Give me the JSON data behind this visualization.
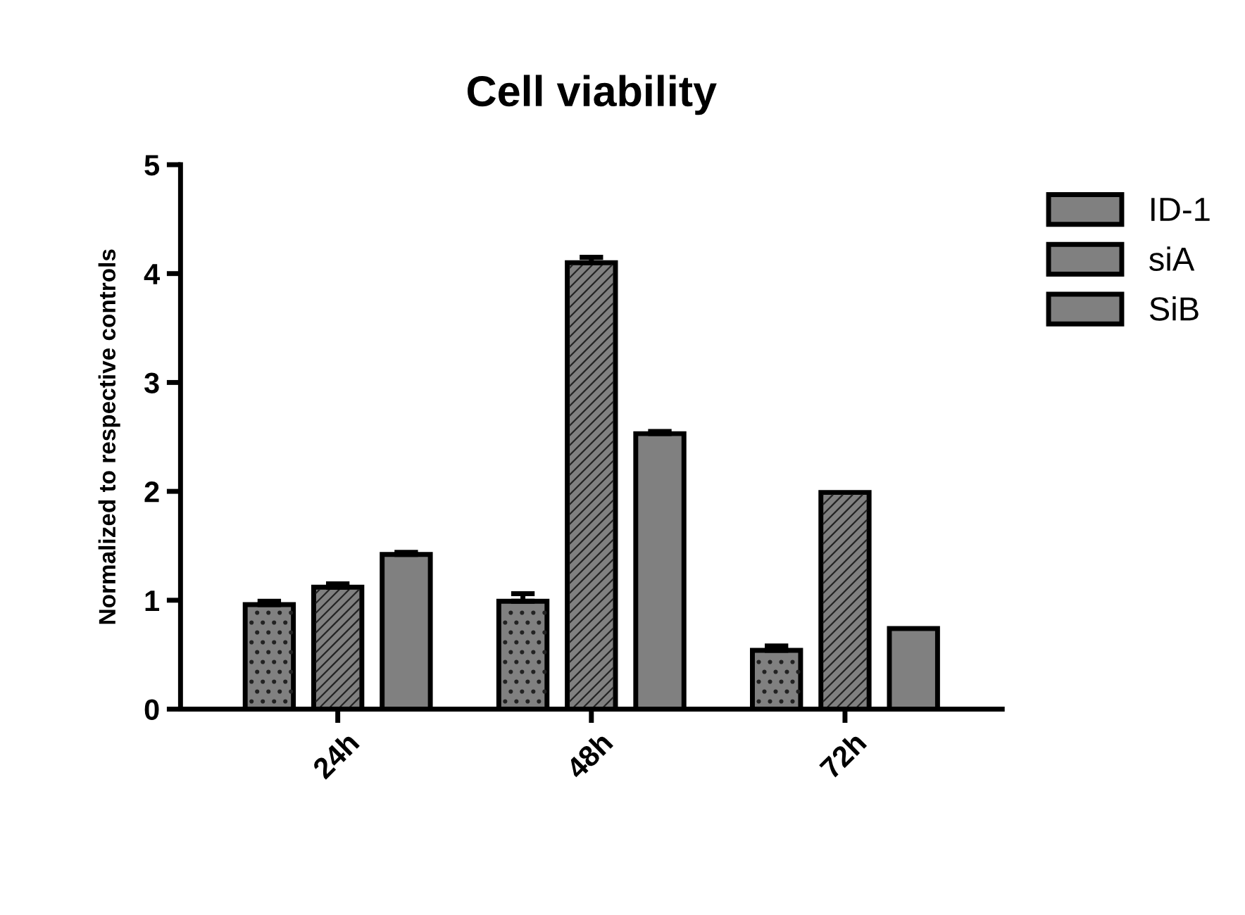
{
  "chart_data": {
    "type": "bar",
    "title": "Cell viability",
    "ylabel": "Normalized to respective controls",
    "categories": [
      "24h",
      "48h",
      "72h"
    ],
    "series": [
      {
        "name": "ID-1",
        "color": "#808080",
        "values": [
          0.96,
          0.99,
          0.54
        ],
        "errors": [
          [
            0.96,
            0.99
          ],
          [
            0.99,
            1.06
          ],
          [
            0.54,
            0.58
          ]
        ]
      },
      {
        "name": "siA",
        "color": "#808080",
        "values": [
          1.12,
          4.1,
          1.99
        ],
        "errors": [
          [
            1.12,
            1.15
          ],
          [
            4.1,
            4.15
          ],
          null
        ]
      },
      {
        "name": "SiB",
        "color": "#808080",
        "values": [
          1.42,
          2.53,
          0.74
        ],
        "errors": [
          [
            1.42,
            1.44
          ],
          [
            2.53,
            2.55
          ],
          null
        ]
      }
    ],
    "ylim": [
      0,
      5
    ],
    "yticks": [
      0,
      1,
      2,
      3,
      4,
      5
    ],
    "grid": false,
    "legend": "top right"
  }
}
